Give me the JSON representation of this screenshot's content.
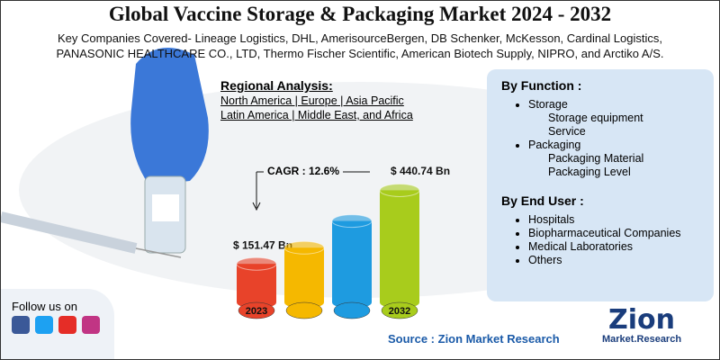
{
  "header": {
    "title": "Global Vaccine Storage & Packaging Market 2024 - 2032",
    "companies_line1": "Key Companies Covered- Lineage Logistics, DHL, AmerisourceBergen, DB Schenker, McKesson, Cardinal Logistics,",
    "companies_line2": "PANASONIC HEALTHCARE CO., LTD, Thermo Fischer Scientific, American Biotech Supply, NIPRO, and Arctiko A/S."
  },
  "regional_analysis": {
    "title": "Regional Analysis:",
    "line1": "North America | Europe | Asia Pacific",
    "line2": "Latin America | Middle East, and Africa"
  },
  "by_function": {
    "title": "By Function :",
    "items": [
      {
        "label": "Storage",
        "subitems": [
          "Storage equipment",
          "Service"
        ]
      },
      {
        "label": "Packaging",
        "subitems": [
          "Packaging Material",
          "Packaging Level"
        ]
      }
    ]
  },
  "by_end_user": {
    "title": "By End User :",
    "items": [
      "Hospitals",
      "Biopharmaceutical Companies",
      "Medical Laboratories",
      "Others"
    ]
  },
  "follow": "Follow us on",
  "source": "Source : Zion Market Research",
  "logo": {
    "name": "Zion",
    "tagline": "Market.Research"
  },
  "chart_data": {
    "type": "bar",
    "annotation": "CAGR : 12.6%",
    "categories": [
      "2023",
      null,
      null,
      "2032"
    ],
    "values": [
      151.47,
      215,
      320,
      440.74
    ],
    "value_labels": [
      "$ 151.47 Bn",
      null,
      null,
      "$ 440.74 Bn"
    ],
    "colors": [
      "#e8432a",
      "#f5b800",
      "#1e9be0",
      "#a8cc1c"
    ],
    "ylim": [
      0,
      460
    ]
  }
}
